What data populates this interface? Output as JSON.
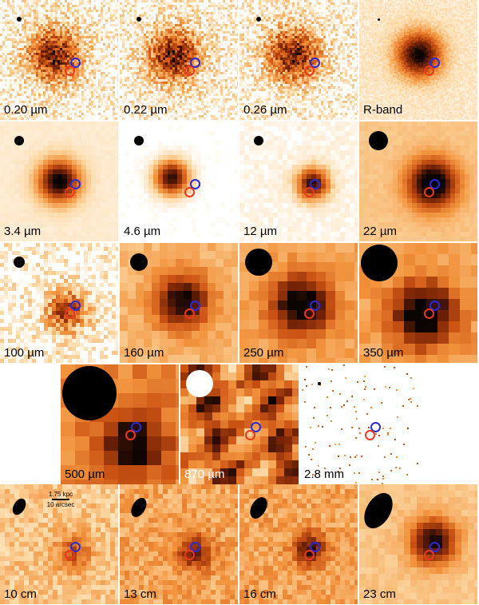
{
  "colors": {
    "marker_blue": "#2b2bd6",
    "marker_red": "#e83a1f"
  },
  "rows": [
    {
      "panels": [
        {
          "label": "0.20 µm",
          "style": "uv",
          "beam": 6,
          "label_color": "dark"
        },
        {
          "label": "0.22 µm",
          "style": "uv",
          "beam": 6,
          "label_color": "dark"
        },
        {
          "label": "0.26 µm",
          "style": "uv",
          "beam": 6,
          "label_color": "dark"
        },
        {
          "label": "R-band",
          "style": "opt",
          "beam": 3,
          "label_color": "dark"
        }
      ]
    },
    {
      "panels": [
        {
          "label": "3.4 µm",
          "style": "ir",
          "beam": 12,
          "label_color": "dark"
        },
        {
          "label": "4.6 µm",
          "style": "ir2",
          "beam": 12,
          "label_color": "dark"
        },
        {
          "label": "12 µm",
          "style": "ir3",
          "beam": 12,
          "label_color": "dark"
        },
        {
          "label": "22 µm",
          "style": "ir4",
          "beam": 24,
          "label_color": "dark"
        }
      ]
    },
    {
      "panels": [
        {
          "label": "100 µm",
          "style": "fir1",
          "beam": 14,
          "label_color": "dark"
        },
        {
          "label": "160 µm",
          "style": "fir2",
          "beam": 22,
          "label_color": "dark"
        },
        {
          "label": "250 µm",
          "style": "fir3",
          "beam": 34,
          "label_color": "dark"
        },
        {
          "label": "350 µm",
          "style": "fir4",
          "beam": 46,
          "label_color": "dark"
        }
      ]
    },
    {
      "panels": [
        {
          "label": "500 µm",
          "style": "fir5",
          "beam": 68,
          "label_color": "dark"
        },
        {
          "label": "870 µm",
          "style": "sub",
          "beam": 34,
          "label_color": "light"
        },
        {
          "label": "2.8 mm",
          "style": "mm",
          "beam": 4,
          "label_color": "dark"
        }
      ]
    },
    {
      "panels": [
        {
          "label": "10 cm",
          "style": "radio1",
          "beam": 14,
          "label_color": "dark"
        },
        {
          "label": "13 cm",
          "style": "radio2",
          "beam": 16,
          "label_color": "dark"
        },
        {
          "label": "16 cm",
          "style": "radio3",
          "beam": 18,
          "label_color": "dark"
        },
        {
          "label": "23 cm",
          "style": "radio4",
          "beam": 30,
          "label_color": "dark"
        }
      ]
    }
  ],
  "scalebar": {
    "kpc": "1.75 kpc",
    "arcsec": "10 arcsec"
  }
}
